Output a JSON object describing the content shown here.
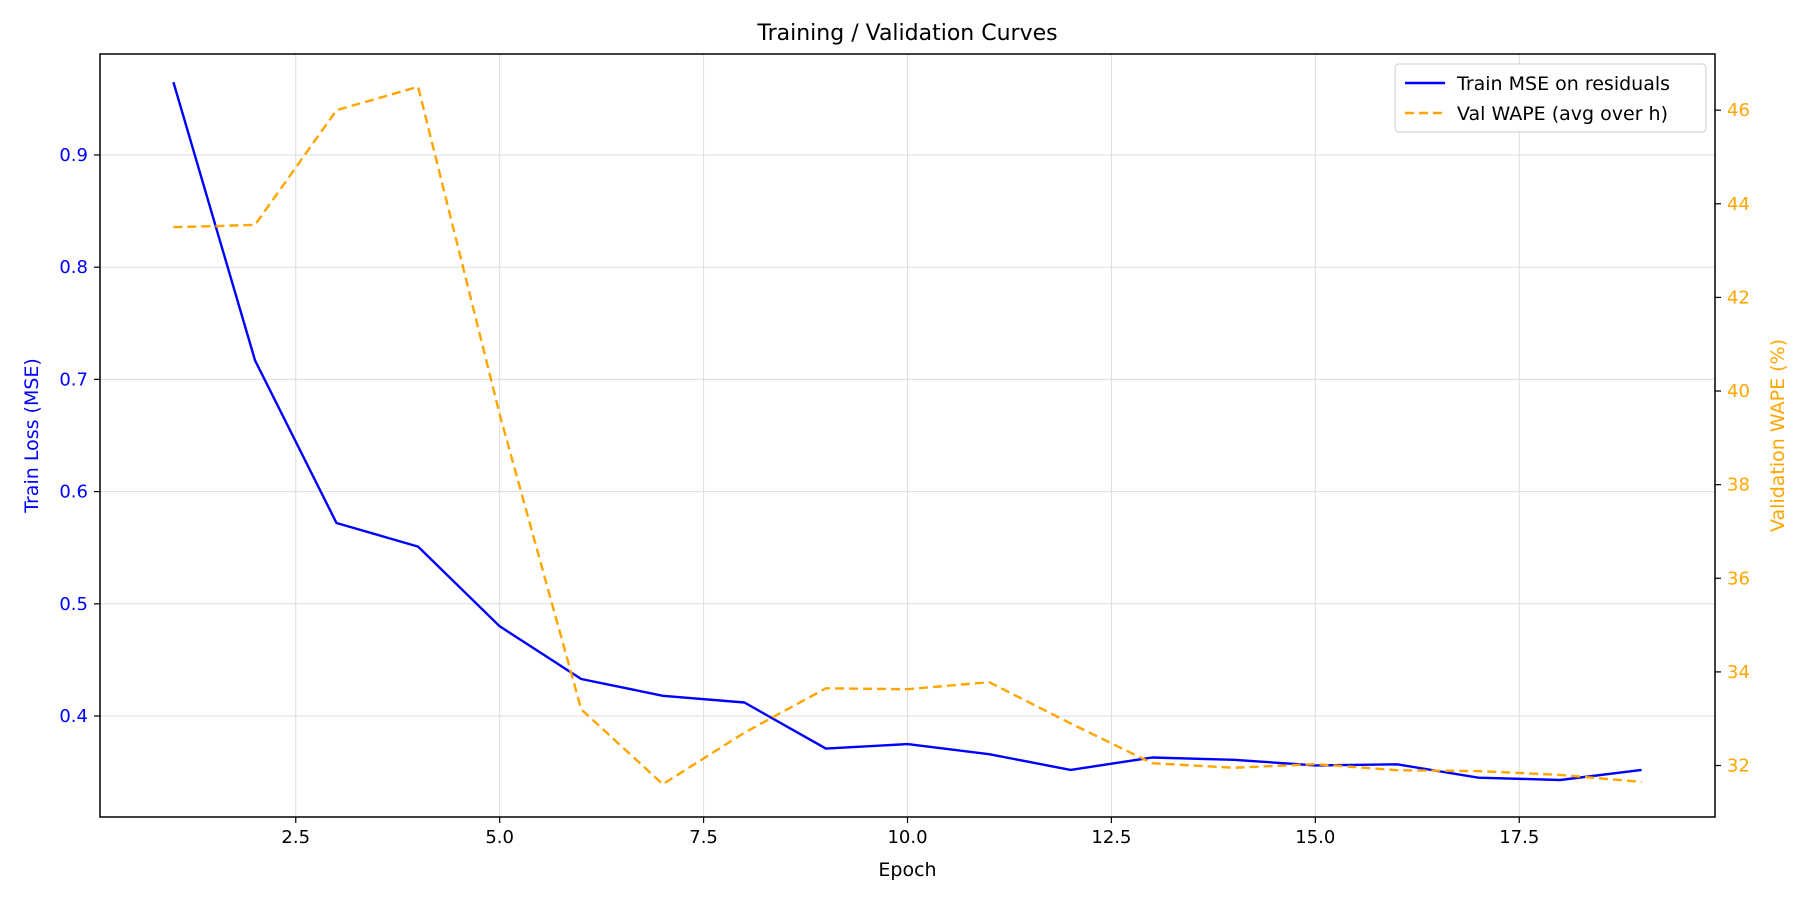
{
  "chart_data": {
    "type": "line",
    "title": "Training / Validation Curves",
    "xlabel": "Epoch",
    "ylabel_left": "Train Loss (MSE)",
    "ylabel_right": "Validation WAPE (%)",
    "x": [
      1,
      2,
      3,
      4,
      5,
      6,
      7,
      8,
      9,
      10,
      11,
      12,
      13,
      14,
      15,
      16,
      17,
      18,
      19
    ],
    "xlim": [
      0.1,
      19.9
    ],
    "ylim_left": [
      0.31,
      0.99
    ],
    "ylim_right": [
      30.9,
      47.2
    ],
    "x_ticks": [
      2.5,
      5.0,
      7.5,
      10.0,
      12.5,
      15.0,
      17.5
    ],
    "x_tick_labels": [
      "2.5",
      "5.0",
      "7.5",
      "10.0",
      "12.5",
      "15.0",
      "17.5"
    ],
    "y_left_ticks": [
      0.4,
      0.5,
      0.6,
      0.7,
      0.8,
      0.9
    ],
    "y_left_tick_labels": [
      "0.4",
      "0.5",
      "0.6",
      "0.7",
      "0.8",
      "0.9"
    ],
    "y_right_ticks": [
      32,
      34,
      36,
      38,
      40,
      42,
      44,
      46
    ],
    "y_right_tick_labels": [
      "32",
      "34",
      "36",
      "38",
      "40",
      "42",
      "44",
      "46"
    ],
    "grid": true,
    "legend_position": "top-right",
    "series": [
      {
        "name": "Train MSE on residuals",
        "axis": "left",
        "color": "#0000ff",
        "style": "solid",
        "values": [
          0.965,
          0.717,
          0.572,
          0.551,
          0.48,
          0.433,
          0.418,
          0.412,
          0.371,
          0.375,
          0.366,
          0.352,
          0.363,
          0.361,
          0.356,
          0.357,
          0.345,
          0.343,
          0.352
        ]
      },
      {
        "name": "Val WAPE (avg over h)",
        "axis": "right",
        "color": "#ffa500",
        "style": "dashed",
        "values": [
          43.5,
          43.55,
          46.0,
          46.5,
          39.5,
          33.2,
          31.6,
          32.7,
          33.65,
          33.63,
          33.78,
          32.9,
          32.05,
          31.95,
          32.03,
          31.9,
          31.88,
          31.8,
          31.65
        ]
      }
    ]
  },
  "colors": {
    "left_axis": "#0000ff",
    "right_axis": "#ffa500",
    "grid": "#dddddd",
    "frame": "#000000"
  }
}
